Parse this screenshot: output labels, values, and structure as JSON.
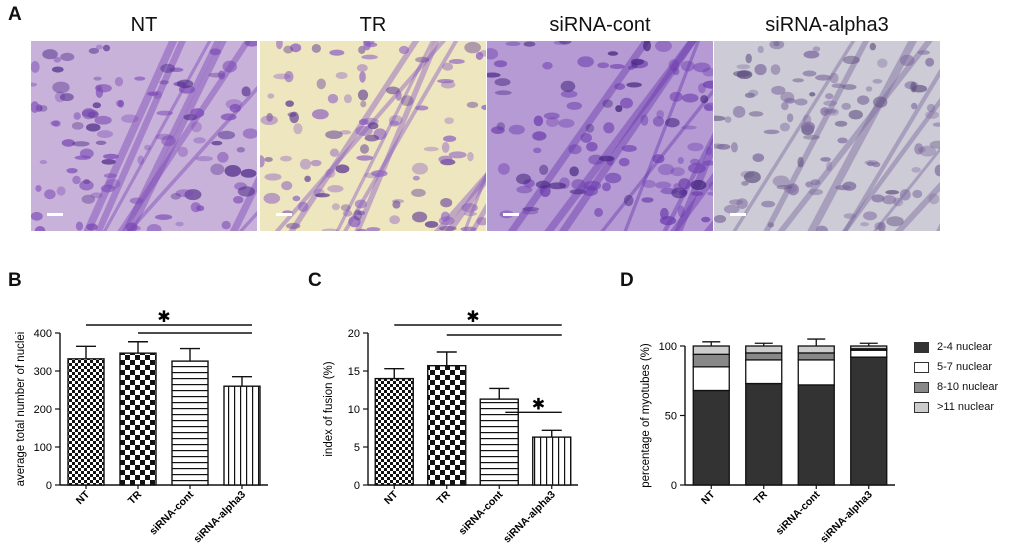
{
  "panel_labels": {
    "a": "A",
    "b": "B",
    "c": "C",
    "d": "D"
  },
  "images": [
    {
      "title": "NT",
      "bg": "#c9b2d9",
      "cell": "#7a47b5",
      "cell_dark": "#4f2a8a"
    },
    {
      "title": "TR",
      "bg": "#eee6bf",
      "cell": "#8a5cc1",
      "cell_dark": "#5a3592"
    },
    {
      "title": "siRNA-cont",
      "bg": "#b59ad3",
      "cell": "#6b3aae",
      "cell_dark": "#43237e"
    },
    {
      "title": "siRNA-alpha3",
      "bg": "#cdcbd6",
      "cell": "#7d6a9e",
      "cell_dark": "#5a4a7b"
    }
  ],
  "significance_marker": "✱",
  "chart_data": [
    {
      "panel": "B",
      "type": "bar",
      "categories": [
        "NT",
        "TR",
        "siRNA-cont",
        "siRNA-alpha3"
      ],
      "values": [
        332,
        347,
        326,
        260
      ],
      "errors": [
        33,
        30,
        33,
        25
      ],
      "patterns": [
        "checker",
        "checker-bold",
        "hlines",
        "vlines"
      ],
      "ylabel": "average total number of nuclei",
      "ylim": [
        0,
        400
      ],
      "yticks": [
        0,
        100,
        200,
        300,
        400
      ],
      "significance": [
        {
          "from": "NT",
          "to": "siRNA-alpha3",
          "label": "✱"
        },
        {
          "from": "TR",
          "to": "siRNA-alpha3",
          "label": ""
        }
      ]
    },
    {
      "panel": "C",
      "type": "bar",
      "categories": [
        "NT",
        "TR",
        "siRNA-cont",
        "siRNA-alpha3"
      ],
      "values": [
        14.0,
        15.7,
        11.3,
        6.3
      ],
      "errors": [
        1.3,
        1.8,
        1.4,
        0.9
      ],
      "patterns": [
        "checker",
        "checker-bold",
        "hlines",
        "vlines"
      ],
      "ylabel": "index of fusion (%)",
      "ylim": [
        0,
        20
      ],
      "yticks": [
        0,
        5,
        10,
        15,
        20
      ],
      "significance": [
        {
          "from": "NT",
          "to": "siRNA-alpha3",
          "label": "✱"
        },
        {
          "from": "TR",
          "to": "siRNA-alpha3",
          "label": ""
        },
        {
          "from": "siRNA-cont",
          "to": "siRNA-alpha3",
          "label": "✱"
        }
      ]
    },
    {
      "panel": "D",
      "type": "bar",
      "stacked": true,
      "categories": [
        "NT",
        "TR",
        "siRNA-cont",
        "siRNA-alpha3"
      ],
      "ylabel": "percentage of myotubes (%)",
      "ylim": [
        0,
        100
      ],
      "yticks": [
        0,
        50,
        100
      ],
      "series": [
        {
          "name": "2-4 nuclear",
          "color": "#333333",
          "values": [
            68,
            73,
            72,
            92
          ],
          "errors": [
            5,
            5,
            12,
            0
          ]
        },
        {
          "name": "5-7 nuclear",
          "color": "#ffffff",
          "values": [
            17,
            17,
            18,
            5
          ],
          "errors": [
            2,
            3,
            4,
            0
          ]
        },
        {
          "name": "8-10 nuclear",
          "color": "#888888",
          "values": [
            9,
            5,
            5,
            1
          ],
          "errors": [
            1,
            1,
            1,
            0
          ]
        },
        {
          "name": ">11 nuclear",
          "color": "#cccccc",
          "values": [
            6,
            5,
            5,
            2
          ],
          "errors": [
            3,
            2,
            5,
            2
          ]
        }
      ]
    }
  ]
}
